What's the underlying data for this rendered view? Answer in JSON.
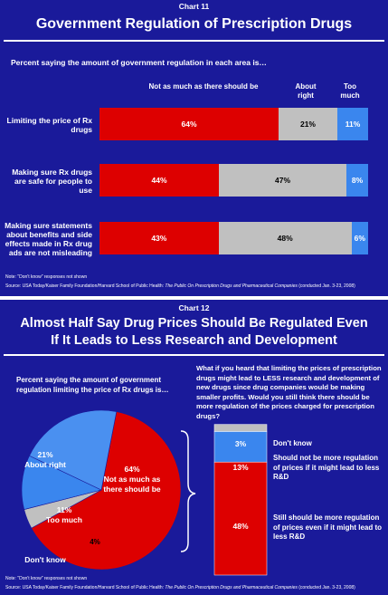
{
  "chart1": {
    "label": "Chart 11",
    "title": "Government Regulation of Prescription Drugs",
    "subtitle": "Percent saying the amount of government regulation in each area is…",
    "legend": [
      "Not as much as there should be",
      "About right",
      "Too much"
    ],
    "note": "Note: \"Don't know\" responses not shown",
    "source": "Source: USA Today/Kaiser Family Foundation/Harvard School of Public Health:",
    "source_italic": "The Public On Prescription Drugs and Pharmaceutical Companies",
    "source_tail": "(conducted Jan. 3-23, 2008)"
  },
  "chart2": {
    "label": "Chart 12",
    "title_line1": "Almost Half Say Drug Prices Should Be Regulated Even",
    "title_line2": "If It Leads to Less Research and Development",
    "left_question": "Percent saying the amount of government regulation limiting the price of Rx drugs is…",
    "right_question": "What if you heard that limiting the prices of prescription drugs might lead to LESS research and development of new drugs since drug companies would be making smaller profits.  Would you still think there should be more regulation of the prices charged for prescription drugs?",
    "pie_labels": {
      "not_as_much_pct": "64%",
      "not_as_much_text": "Not as much as there should be",
      "about_right_pct": "21%",
      "about_right_text": "About right",
      "too_much_pct": "11%",
      "too_much_text": "Too much",
      "dont_know_pct": "4%",
      "dont_know_text": "Don't know"
    },
    "stack_labels": {
      "dont_know_pct": "3%",
      "dont_know_text": "Don't know",
      "should_not_pct": "13%",
      "should_not_text": "Should not be more regulation of prices if it might lead to less R&D",
      "still_should_pct": "48%",
      "still_should_text": "Still should be more regulation of prices even if it might lead to less R&D"
    },
    "note": "Note: \"Don't know\" responses not shown",
    "source": "Source: USA Today/Kaiser Family Foundation/Harvard School of Public Health:",
    "source_italic": "The Public On Prescription Drugs and Pharmaceutical Companies",
    "source_tail": "(conducted Jan. 3-23, 2008)"
  },
  "colors": {
    "background": "#1a1a9a",
    "not_as_much": "#dd0000",
    "about_right": "#c0c0c0",
    "too_much": "#3a86ee",
    "dont_know": "#c0c0c0"
  },
  "chart_data": [
    {
      "type": "bar",
      "orientation": "horizontal-stacked",
      "title": "Government Regulation of Prescription Drugs",
      "categories": [
        "Limiting the price of Rx drugs",
        "Making sure Rx drugs are safe for people to use",
        "Making sure statements about benefits and side effects made in Rx drug ads are not misleading"
      ],
      "series": [
        {
          "name": "Not as much as there should be",
          "values": [
            64,
            44,
            43
          ],
          "labels": [
            "64%",
            "44%",
            "43%"
          ]
        },
        {
          "name": "About right",
          "values": [
            21,
            47,
            48
          ],
          "labels": [
            "21%",
            "47%",
            "48%"
          ]
        },
        {
          "name": "Too much",
          "values": [
            11,
            8,
            6
          ],
          "labels": [
            "11%",
            "8%",
            "6%"
          ]
        }
      ]
    },
    {
      "type": "pie",
      "title": "Percent saying the amount of government regulation limiting the price of Rx drugs is…",
      "categories": [
        "Not as much as there should be",
        "Don't know",
        "Too much",
        "About right"
      ],
      "values": [
        64,
        4,
        11,
        21
      ]
    },
    {
      "type": "bar",
      "orientation": "vertical-stacked",
      "categories": [
        "Still should be more regulation of prices even if it might lead to less R&D",
        "Should not be more regulation of prices if it might lead to less R&D",
        "Don't know"
      ],
      "values": [
        48,
        13,
        3
      ]
    }
  ]
}
